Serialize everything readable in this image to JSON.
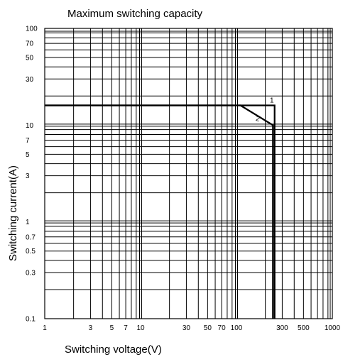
{
  "chart_data": {
    "type": "line",
    "title": "Maximum switching capacity",
    "xlabel": "Switching voltage(V)",
    "ylabel": "Switching current(A)",
    "x_scale": "log",
    "y_scale": "log",
    "xlim": [
      1,
      1000
    ],
    "ylim": [
      0.1,
      100
    ],
    "grid": true,
    "x_ticks": [
      {
        "value": 1,
        "label": "1"
      },
      {
        "value": 3,
        "label": "3"
      },
      {
        "value": 5,
        "label": "5"
      },
      {
        "value": 7,
        "label": "7"
      },
      {
        "value": 10,
        "label": "10"
      },
      {
        "value": 30,
        "label": "30"
      },
      {
        "value": 50,
        "label": "50"
      },
      {
        "value": 70,
        "label": "70"
      },
      {
        "value": 100,
        "label": "100"
      },
      {
        "value": 300,
        "label": "300"
      },
      {
        "value": 500,
        "label": "500"
      },
      {
        "value": 1000,
        "label": "1000"
      }
    ],
    "y_ticks": [
      {
        "value": 0.1,
        "label": "0.1"
      },
      {
        "value": 0.3,
        "label": "0.3"
      },
      {
        "value": 0.5,
        "label": "0.5"
      },
      {
        "value": 0.7,
        "label": "0.7"
      },
      {
        "value": 1,
        "label": "1"
      },
      {
        "value": 3,
        "label": "3"
      },
      {
        "value": 5,
        "label": "5"
      },
      {
        "value": 7,
        "label": "7"
      },
      {
        "value": 10,
        "label": "10"
      },
      {
        "value": 30,
        "label": "30"
      },
      {
        "value": 50,
        "label": "50"
      },
      {
        "value": 70,
        "label": "70"
      },
      {
        "value": 100,
        "label": "100"
      }
    ],
    "series": [
      {
        "name": "1",
        "x": [
          1,
          250,
          250
        ],
        "y": [
          16,
          16,
          0.1
        ]
      },
      {
        "name": "2",
        "x": [
          1,
          110,
          240,
          240
        ],
        "y": [
          16,
          16,
          10,
          0.1
        ]
      }
    ]
  }
}
